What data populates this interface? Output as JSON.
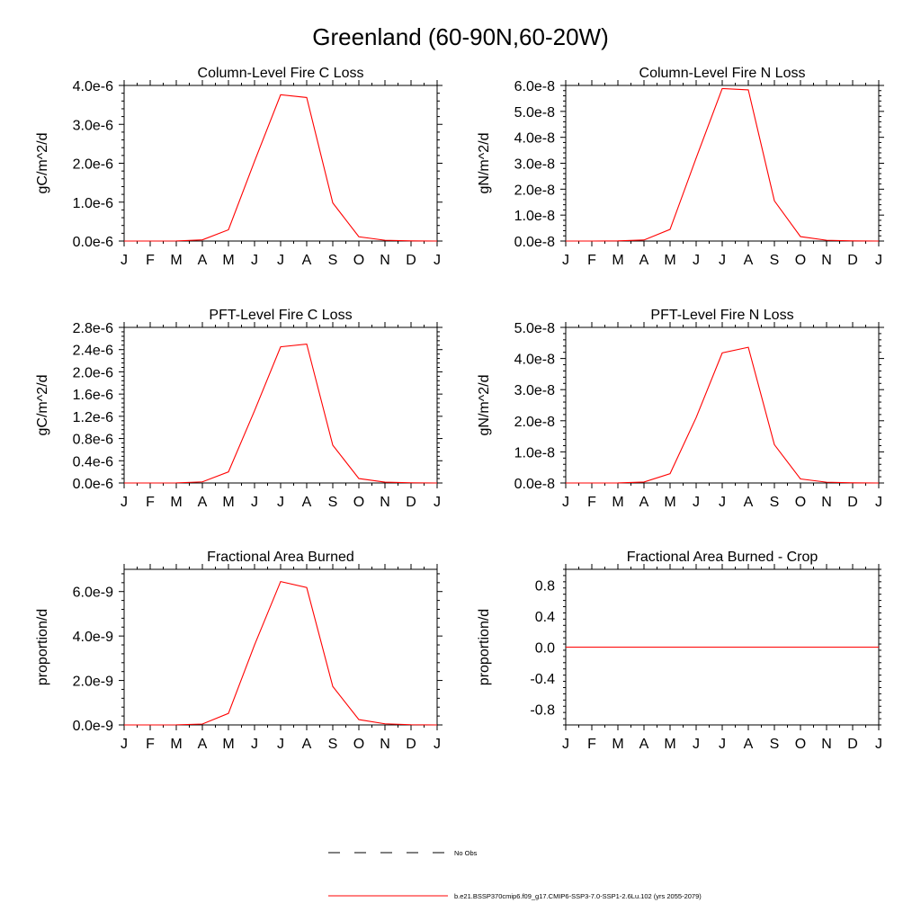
{
  "figure": {
    "title": "Greenland (60-90N,60-20W)"
  },
  "legend": {
    "entries": [
      {
        "label": "No Obs",
        "style": "dashed",
        "color": "#000000"
      },
      {
        "label": "b.e21.BSSP370cmip6.f09_g17.CMIP6-SSP3-7.0-SSP1-2.6Lu.102 (yrs 2055-2079)",
        "style": "solid",
        "color": "#ff0000"
      }
    ]
  },
  "colors": {
    "series": "#ff0000",
    "axis": "#000000"
  },
  "chart_data": [
    {
      "type": "line",
      "title": "Column-Level Fire C Loss",
      "ylabel": "gC/m^2/d",
      "categories": [
        "J",
        "F",
        "M",
        "A",
        "M",
        "J",
        "J",
        "A",
        "S",
        "O",
        "N",
        "D",
        "J"
      ],
      "ylim": [
        0,
        4e-06
      ],
      "yticks": [
        0,
        1e-06,
        2e-06,
        3e-06,
        4e-06
      ],
      "ytick_labels": [
        "0.0e-6",
        "1.0e-6",
        "2.0e-6",
        "3.0e-6",
        "4.0e-6"
      ],
      "series": [
        {
          "values": [
            0,
            0,
            3e-09,
            3e-08,
            2.9e-07,
            2.05e-06,
            3.76e-06,
            3.69e-06,
            9.8e-07,
            1.1e-07,
            2e-08,
            5e-09,
            0
          ]
        }
      ]
    },
    {
      "type": "line",
      "title": "Column-Level Fire N Loss",
      "ylabel": "gN/m^2/d",
      "categories": [
        "J",
        "F",
        "M",
        "A",
        "M",
        "J",
        "J",
        "A",
        "S",
        "O",
        "N",
        "D",
        "J"
      ],
      "ylim": [
        0,
        6e-08
      ],
      "yticks": [
        0,
        1e-08,
        2e-08,
        3e-08,
        4e-08,
        5e-08,
        6e-08
      ],
      "ytick_labels": [
        "0.0e-8",
        "1.0e-8",
        "2.0e-8",
        "3.0e-8",
        "4.0e-8",
        "5.0e-8",
        "6.0e-8"
      ],
      "series": [
        {
          "values": [
            0,
            0,
            5e-11,
            4e-10,
            4.5e-09,
            3.2e-08,
            5.88e-08,
            5.83e-08,
            1.55e-08,
            1.7e-09,
            3e-10,
            8e-11,
            0
          ]
        }
      ]
    },
    {
      "type": "line",
      "title": "PFT-Level Fire C Loss",
      "ylabel": "gC/m^2/d",
      "categories": [
        "J",
        "F",
        "M",
        "A",
        "M",
        "J",
        "J",
        "A",
        "S",
        "O",
        "N",
        "D",
        "J"
      ],
      "ylim": [
        0,
        2.8e-06
      ],
      "yticks": [
        0,
        4e-07,
        8e-07,
        1.2e-06,
        1.6e-06,
        2e-06,
        2.4e-06,
        2.8e-06
      ],
      "ytick_labels": [
        "0.0e-6",
        "0.4e-6",
        "0.8e-6",
        "1.2e-6",
        "1.6e-6",
        "2.0e-6",
        "2.4e-6",
        "2.8e-6"
      ],
      "series": [
        {
          "values": [
            0,
            0,
            2e-09,
            2e-08,
            2e-07,
            1.3e-06,
            2.45e-06,
            2.5e-06,
            6.8e-07,
            8e-08,
            1.5e-08,
            4e-09,
            0
          ]
        }
      ]
    },
    {
      "type": "line",
      "title": "PFT-Level Fire N Loss",
      "ylabel": "gN/m^2/d",
      "categories": [
        "J",
        "F",
        "M",
        "A",
        "M",
        "J",
        "J",
        "A",
        "S",
        "O",
        "N",
        "D",
        "J"
      ],
      "ylim": [
        0,
        5e-08
      ],
      "yticks": [
        0,
        1e-08,
        2e-08,
        3e-08,
        4e-08,
        5e-08
      ],
      "ytick_labels": [
        "0.0e-8",
        "1.0e-8",
        "2.0e-8",
        "3.0e-8",
        "4.0e-8",
        "5.0e-8"
      ],
      "series": [
        {
          "values": [
            0,
            0,
            3e-11,
            3e-10,
            3e-09,
            2.1e-08,
            4.18e-08,
            4.36e-08,
            1.23e-08,
            1.3e-09,
            2.5e-10,
            6e-11,
            0
          ]
        }
      ]
    },
    {
      "type": "line",
      "title": "Fractional Area Burned",
      "ylabel": "proportion/d",
      "categories": [
        "J",
        "F",
        "M",
        "A",
        "M",
        "J",
        "J",
        "A",
        "S",
        "O",
        "N",
        "D",
        "J"
      ],
      "ylim": [
        0,
        7e-09
      ],
      "yticks": [
        0,
        2e-09,
        4e-09,
        6e-09
      ],
      "ytick_labels": [
        "0.0e-9",
        "2.0e-9",
        "4.0e-9",
        "6.0e-9"
      ],
      "series": [
        {
          "values": [
            0,
            0,
            5e-12,
            4e-11,
            5.2e-10,
            3.6e-09,
            6.45e-09,
            6.18e-09,
            1.73e-09,
            2.4e-10,
            5e-11,
            1e-11,
            0
          ]
        }
      ]
    },
    {
      "type": "line",
      "title": "Fractional Area Burned - Crop",
      "ylabel": "proportion/d",
      "categories": [
        "J",
        "F",
        "M",
        "A",
        "M",
        "J",
        "J",
        "A",
        "S",
        "O",
        "N",
        "D",
        "J"
      ],
      "ylim": [
        -1.0,
        1.0
      ],
      "yticks": [
        -0.8,
        -0.4,
        0.0,
        0.4,
        0.8
      ],
      "ytick_labels": [
        "-0.8",
        "-0.4",
        "0.0",
        "0.4",
        "0.8"
      ],
      "series": [
        {
          "values": [
            0,
            0,
            0,
            0,
            0,
            0,
            0,
            0,
            0,
            0,
            0,
            0,
            0
          ]
        }
      ]
    }
  ]
}
